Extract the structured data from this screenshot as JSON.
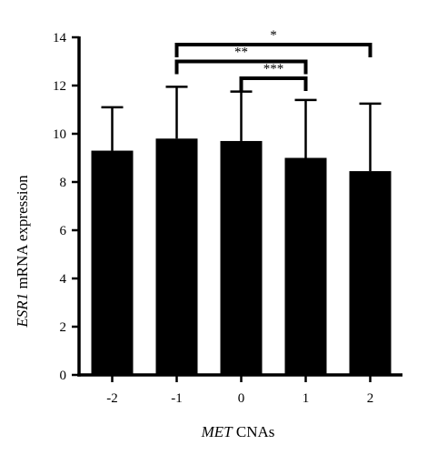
{
  "chart_data": {
    "type": "bar",
    "title": "",
    "xlabel_italic": "MET",
    "xlabel_rest": " CNAs",
    "ylabel_italic": "ESR1",
    "ylabel_rest": " mRNA expression",
    "categories": [
      "-2",
      "-1",
      "0",
      "1",
      "2"
    ],
    "values": [
      9.3,
      9.8,
      9.7,
      9.0,
      8.45
    ],
    "error_upper": [
      11.1,
      11.95,
      11.75,
      11.4,
      11.25
    ],
    "ylim": [
      0,
      14
    ],
    "yticks": [
      "0",
      "2",
      "4",
      "6",
      "8",
      "10",
      "12",
      "14"
    ],
    "grid": false,
    "bar_color": "#000000",
    "significance": [
      {
        "from": "-1",
        "to": "2",
        "label": "*",
        "level": 13.7
      },
      {
        "from": "-1",
        "to": "1",
        "label": "**",
        "level": 13.0
      },
      {
        "from": "0",
        "to": "1",
        "label": "***",
        "level": 12.3
      }
    ]
  }
}
